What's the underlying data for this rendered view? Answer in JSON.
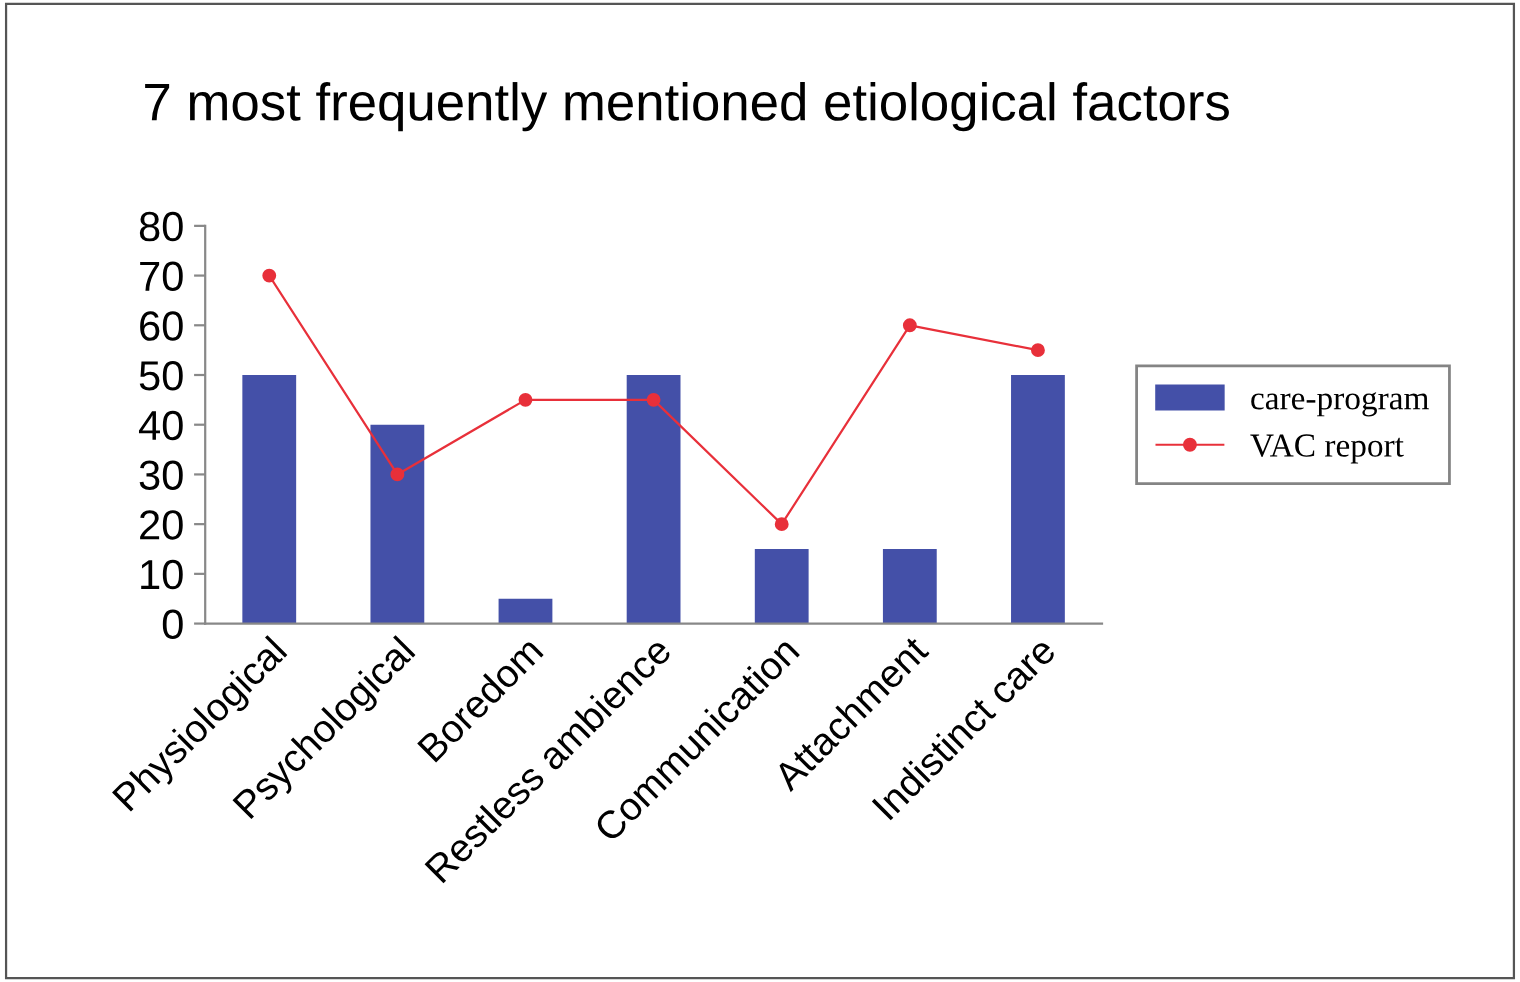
{
  "chart_data": {
    "type": "bar",
    "title": "7 most frequently mentioned etiological factors",
    "categories": [
      "Physiological",
      "Psychological",
      "Boredom",
      "Restless ambience",
      "Communication",
      "Attachment",
      "Indistinct care"
    ],
    "series": [
      {
        "name": "care-program",
        "color": "#4450a8",
        "values": [
          50,
          40,
          5,
          50,
          15,
          15,
          50
        ]
      },
      {
        "name": "VAC report",
        "type": "line",
        "color": "#e8303a",
        "marker": "circle",
        "values": [
          70,
          30,
          45,
          45,
          20,
          60,
          55
        ]
      }
    ],
    "ylim": [
      0,
      80
    ],
    "yticks": [
      0,
      10,
      20,
      30,
      40,
      50,
      60,
      70,
      80
    ],
    "grid": false,
    "legend": "right"
  }
}
